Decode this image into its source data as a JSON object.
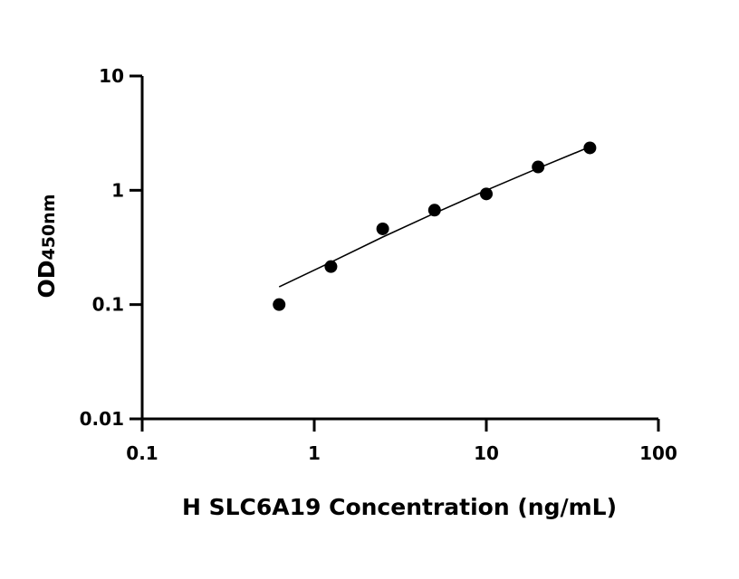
{
  "chart_data": {
    "type": "scatter",
    "title": "",
    "xlabel": "H SLC6A19 Concentration (ng/mL)",
    "ylabel": {
      "main": "OD",
      "subscript": "450nm"
    },
    "xscale": "log",
    "yscale": "log",
    "xlim": [
      0.1,
      100
    ],
    "ylim": [
      0.01,
      10
    ],
    "xticks": [
      {
        "value": 0.1,
        "label": "0.1"
      },
      {
        "value": 1,
        "label": "1"
      },
      {
        "value": 10,
        "label": "10"
      },
      {
        "value": 100,
        "label": "100"
      }
    ],
    "yticks": [
      {
        "value": 0.01,
        "label": "0.01"
      },
      {
        "value": 0.1,
        "label": "0.1"
      },
      {
        "value": 1,
        "label": "1"
      },
      {
        "value": 10,
        "label": "10"
      }
    ],
    "grid": false,
    "legend": "none",
    "series": [
      {
        "points": [
          {
            "x": 0.625,
            "y": 0.1
          },
          {
            "x": 1.25,
            "y": 0.215
          },
          {
            "x": 2.5,
            "y": 0.46
          },
          {
            "x": 5,
            "y": 0.67
          },
          {
            "x": 10,
            "y": 0.93
          },
          {
            "x": 20,
            "y": 1.6
          },
          {
            "x": 40,
            "y": 2.35
          }
        ],
        "fit_curve": [
          {
            "x": 0.625,
            "y": 0.143
          },
          {
            "x": 1.25,
            "y": 0.235
          },
          {
            "x": 2.5,
            "y": 0.39
          },
          {
            "x": 5,
            "y": 0.63
          },
          {
            "x": 10,
            "y": 1.0
          },
          {
            "x": 20,
            "y": 1.56
          },
          {
            "x": 40,
            "y": 2.4
          }
        ]
      }
    ],
    "colors": {
      "marker": "#000000",
      "line": "#000000",
      "axis": "#000000"
    }
  }
}
